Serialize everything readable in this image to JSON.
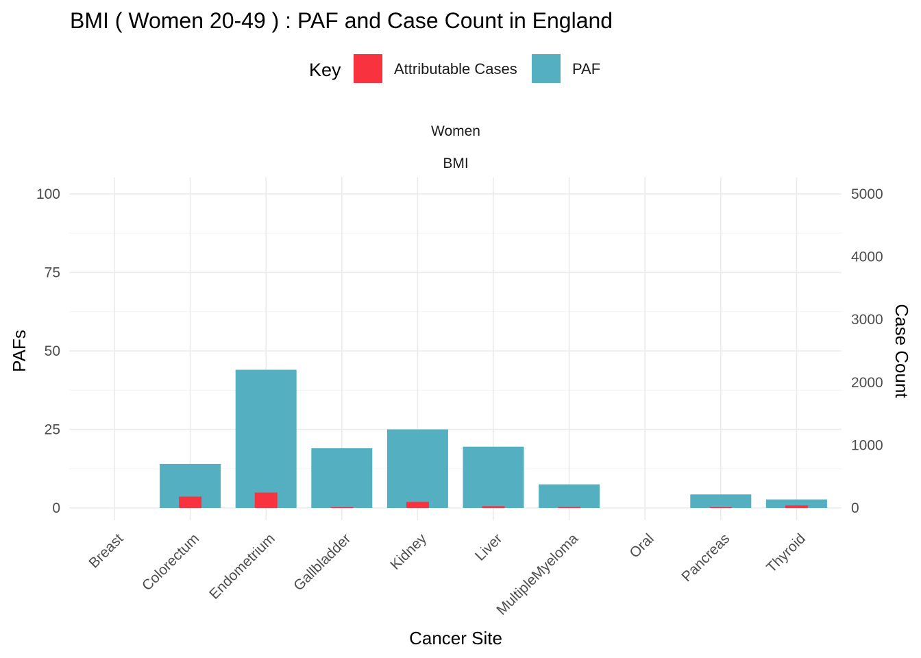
{
  "chart_data": {
    "type": "bar",
    "title": "BMI ( Women 20-49 ) : PAF and Case Count in England",
    "legend": {
      "title": "Key",
      "position": "top",
      "entries": [
        {
          "label": "Attributable Cases",
          "color": "#f8333f"
        },
        {
          "label": "PAF",
          "color": "#54afc1"
        }
      ]
    },
    "facet_strips": [
      "Women",
      "BMI"
    ],
    "xlabel": "Cancer Site",
    "ylabel": "PAFs",
    "y2label": "Case Count",
    "categories": [
      "Breast",
      "Colorectum",
      "Endometrium",
      "Gallbladder",
      "Kidney",
      "Liver",
      "MultipleMyeloma",
      "Oral",
      "Pancreas",
      "Thyroid"
    ],
    "ylim": [
      0,
      100
    ],
    "yticks": [
      0,
      25,
      50,
      75,
      100
    ],
    "y2lim": [
      0,
      5000
    ],
    "y2ticks": [
      0,
      1000,
      2000,
      3000,
      4000,
      5000
    ],
    "grid": true,
    "series": [
      {
        "name": "PAF",
        "axis": "left",
        "color": "#54afc1",
        "values": [
          0,
          14,
          44,
          19,
          25,
          19.5,
          7.5,
          0,
          4.3,
          2.7
        ]
      },
      {
        "name": "Attributable Cases",
        "axis": "right",
        "color": "#f8333f",
        "values": [
          0,
          180,
          245,
          12,
          95,
          28,
          14,
          0,
          11,
          40
        ]
      }
    ]
  }
}
